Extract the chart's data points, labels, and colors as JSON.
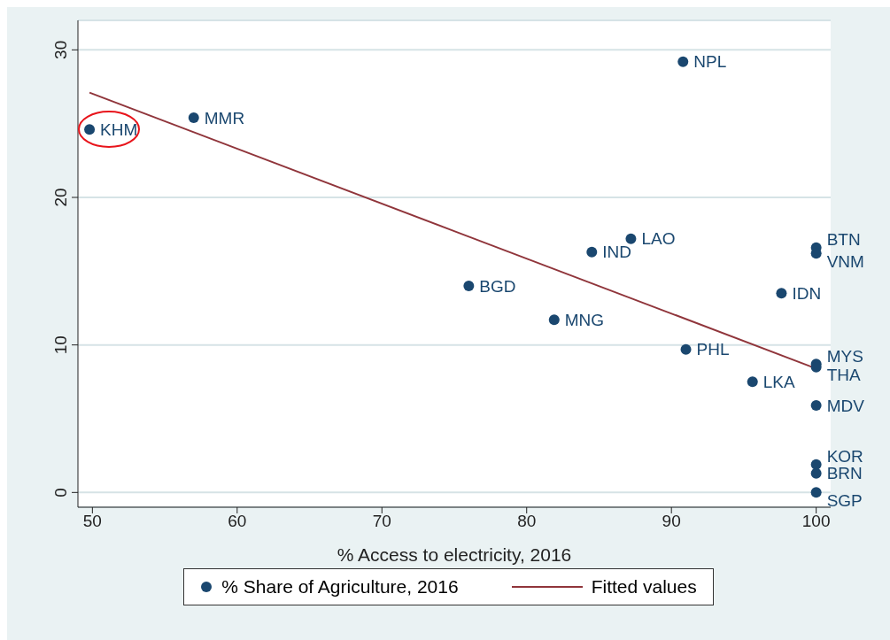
{
  "chart_data": {
    "type": "scatter",
    "xlabel": "% Access to electricity, 2016",
    "xlim": [
      49,
      101
    ],
    "xticks": [
      50,
      60,
      70,
      80,
      90,
      100
    ],
    "ylim": [
      -1,
      32
    ],
    "yticks": [
      0,
      10,
      20,
      30
    ],
    "grid": "y",
    "legend": "bottom",
    "series": [
      {
        "name": "% Share of Agriculture, 2016",
        "type": "scatter",
        "marker": "circle",
        "color": "#1a476f",
        "x": [
          49.8,
          57.0,
          90.8,
          87.2,
          84.5,
          76.0,
          81.9,
          91.0,
          95.6,
          97.6,
          100,
          100,
          100,
          100,
          100,
          100,
          100,
          100
        ],
        "values": [
          24.6,
          25.4,
          29.2,
          17.2,
          16.3,
          14.0,
          11.7,
          9.7,
          7.5,
          13.5,
          16.6,
          16.2,
          8.7,
          8.5,
          5.9,
          1.9,
          1.3,
          0
        ],
        "value_labels": [
          "KHM",
          "MMR",
          "NPL",
          "LAO",
          "IND",
          "BGD",
          "MNG",
          "PHL",
          "LKA",
          "IDN",
          "BTN",
          "VNM",
          "MYS",
          "THA",
          "MDV",
          "KOR",
          "BRN",
          "SGP"
        ]
      },
      {
        "name": "Fitted values",
        "type": "line",
        "marker": "none",
        "color": "#90353b",
        "x": [
          49.8,
          100
        ],
        "values": [
          27.1,
          8.4
        ]
      }
    ]
  }
}
